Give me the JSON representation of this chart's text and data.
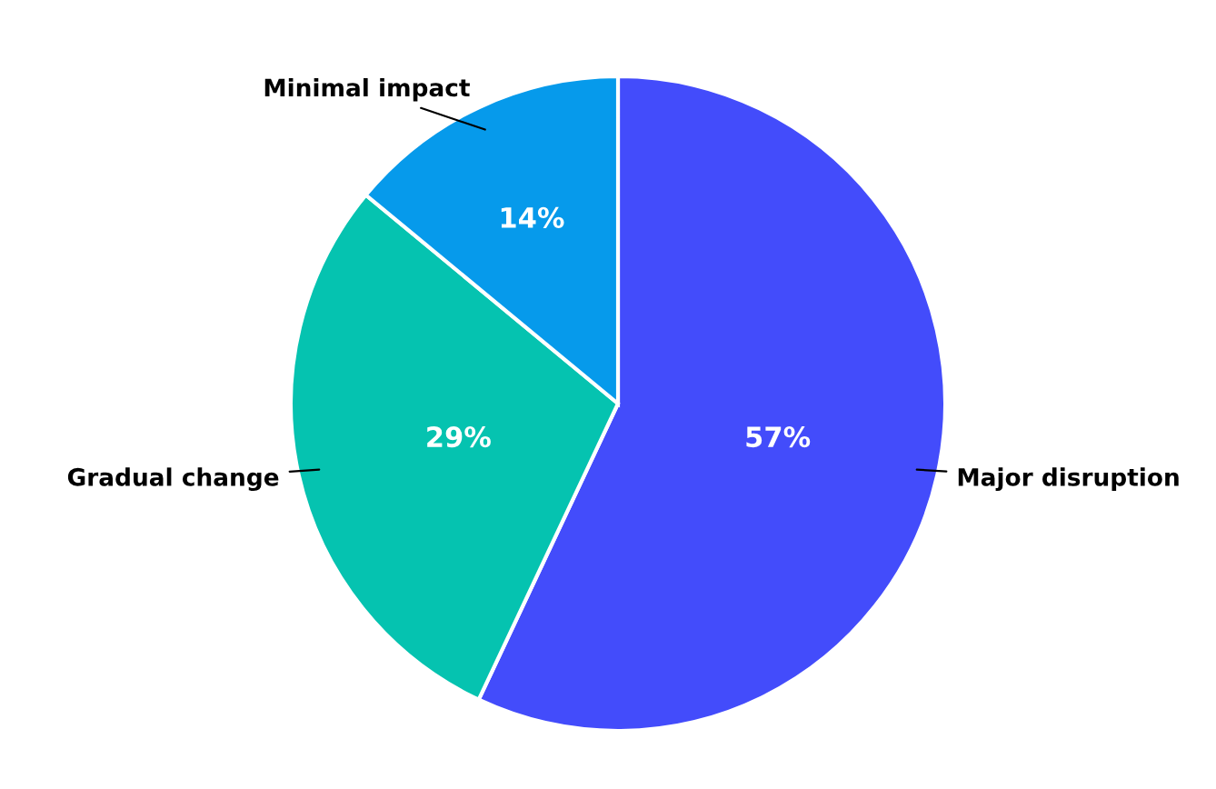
{
  "chart_data": {
    "type": "pie",
    "categories": [
      "Major disruption",
      "Gradual change",
      "Minimal impact"
    ],
    "values": [
      57,
      29,
      14
    ],
    "colors": [
      "#434cfb",
      "#05c3b0",
      "#069aeb"
    ],
    "value_labels": [
      "57%",
      "29%",
      "14%"
    ]
  }
}
